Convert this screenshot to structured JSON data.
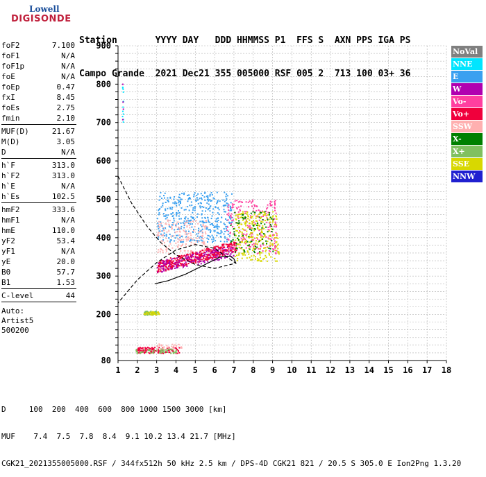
{
  "logo": {
    "line1": "Lowell",
    "line2": "DIGISONDE"
  },
  "header": {
    "line1": "Station       YYYY DAY   DDD HHMMSS P1  FFS S  AXN PPS IGA PS",
    "line2": "Campo Grande  2021 Dec21 355 005000 RSF 005 2  713 100 03+ 36"
  },
  "params_group1": [
    {
      "name": "foF2",
      "value": "7.100"
    },
    {
      "name": "foF1",
      "value": "N/A"
    },
    {
      "name": "foF1p",
      "value": "N/A"
    },
    {
      "name": "foE",
      "value": "N/A"
    },
    {
      "name": "foEp",
      "value": "0.47"
    },
    {
      "name": "fxI",
      "value": "8.45"
    },
    {
      "name": "foEs",
      "value": "2.75"
    },
    {
      "name": "fmin",
      "value": "2.10"
    }
  ],
  "params_group2": [
    {
      "name": "MUF(D)",
      "value": "21.67"
    },
    {
      "name": "M(D)",
      "value": "3.05"
    },
    {
      "name": "D",
      "value": "N/A"
    }
  ],
  "params_group3": [
    {
      "name": "h`F",
      "value": "313.0"
    },
    {
      "name": "h`F2",
      "value": "313.0"
    },
    {
      "name": "h`E",
      "value": "N/A"
    },
    {
      "name": "h`Es",
      "value": "102.5"
    }
  ],
  "params_group4": [
    {
      "name": "hmF2",
      "value": "333.6"
    },
    {
      "name": "hmF1",
      "value": "N/A"
    },
    {
      "name": "hmE",
      "value": "110.0"
    },
    {
      "name": "yF2",
      "value": "53.4"
    },
    {
      "name": "yF1",
      "value": "N/A"
    },
    {
      "name": "yE",
      "value": "20.0"
    },
    {
      "name": "B0",
      "value": "57.7"
    },
    {
      "name": "B1",
      "value": "1.53"
    }
  ],
  "params_group5": [
    {
      "name": "C-level",
      "value": "44"
    }
  ],
  "auto": {
    "line1": "Auto:",
    "line2": "Artist5",
    "line3": "500200"
  },
  "legend": [
    {
      "label": "NoVal",
      "color": "#808080"
    },
    {
      "label": "NNE",
      "color": "#00e5ff"
    },
    {
      "label": "E",
      "color": "#3aa0f0"
    },
    {
      "label": "W",
      "color": "#b000b0"
    },
    {
      "label": "Vo-",
      "color": "#ff3fa0"
    },
    {
      "label": "Vo+",
      "color": "#f0003c"
    },
    {
      "label": "SSW",
      "color": "#ffb0b0"
    },
    {
      "label": "X-",
      "color": "#008000"
    },
    {
      "label": "X+",
      "color": "#80c060"
    },
    {
      "label": "SSE",
      "color": "#d8d800"
    },
    {
      "label": "NNW",
      "color": "#2020d0"
    }
  ],
  "footer": {
    "line1": "D     100  200  400  600  800 1000 1500 3000 [km]",
    "line2": "MUF    7.4  7.5  7.8  8.4  9.1 10.2 13.4 21.7 [MHz]",
    "line3": "CGK21_2021355005000.RSF / 344fx512h 50 kHz 2.5 km / DPS-4D CGK21 821 / 20.5 S 305.0 E Ion2Png 1.3.20"
  },
  "chart_data": {
    "type": "scatter",
    "xlim": [
      1,
      18
    ],
    "ylim": [
      80,
      900
    ],
    "x_ticks": [
      "1",
      "2",
      "3",
      "4",
      "5",
      "6",
      "7",
      "8",
      "9",
      "10",
      "11",
      "12",
      "13",
      "14",
      "15",
      "16",
      "17",
      "18"
    ],
    "y_ticks": [
      "80",
      "200",
      "300",
      "400",
      "500",
      "600",
      "700",
      "800",
      "900"
    ],
    "grid": true,
    "clusters": [
      {
        "series": "E",
        "x": [
          3.0,
          6.9
        ],
        "y": [
          390,
          520
        ],
        "n": 420
      },
      {
        "series": "SSW",
        "x": [
          3.0,
          5.6
        ],
        "y": [
          360,
          450
        ],
        "n": 160
      },
      {
        "series": "Vo+",
        "x": [
          3.0,
          7.1
        ],
        "y": [
          310,
          400
        ],
        "n": 420
      },
      {
        "series": "W",
        "x": [
          3.0,
          7.0
        ],
        "y": [
          310,
          380
        ],
        "n": 160
      },
      {
        "series": "Vo-",
        "x": [
          6.6,
          9.2
        ],
        "y": [
          360,
          500
        ],
        "n": 220
      },
      {
        "series": "SSE",
        "x": [
          7.0,
          9.3
        ],
        "y": [
          340,
          470
        ],
        "n": 260
      },
      {
        "series": "X-",
        "x": [
          6.8,
          9.0
        ],
        "y": [
          360,
          470
        ],
        "n": 90
      },
      {
        "series": "X+",
        "x": [
          2.3,
          3.0
        ],
        "y": [
          200,
          210
        ],
        "n": 60
      },
      {
        "series": "SSE",
        "x": [
          2.3,
          3.1
        ],
        "y": [
          200,
          210
        ],
        "n": 30
      },
      {
        "series": "Vo+",
        "x": [
          1.9,
          4.2
        ],
        "y": [
          100,
          116
        ],
        "n": 120
      },
      {
        "series": "X+",
        "x": [
          1.9,
          4.0
        ],
        "y": [
          100,
          112
        ],
        "n": 60
      },
      {
        "series": "SSW",
        "x": [
          3.0,
          4.3
        ],
        "y": [
          110,
          125
        ],
        "n": 30
      },
      {
        "series": "NNE",
        "x": [
          1.2,
          1.25
        ],
        "y": [
          700,
          800
        ],
        "n": 12
      },
      {
        "series": "W",
        "x": [
          1.2,
          1.25
        ],
        "y": [
          705,
          805
        ],
        "n": 4
      }
    ],
    "profile_solid": [
      [
        7.1,
        333.6
      ],
      [
        7.0,
        345
      ],
      [
        6.8,
        352
      ],
      [
        6.3,
        350
      ],
      [
        5.5,
        330
      ],
      [
        4.5,
        305
      ],
      [
        3.6,
        288
      ],
      [
        2.9,
        280
      ]
    ],
    "profile_dashed": [
      [
        1.0,
        560
      ],
      [
        1.7,
        490
      ],
      [
        2.5,
        430
      ],
      [
        3.2,
        388
      ],
      [
        4.0,
        355
      ],
      [
        5.0,
        330
      ],
      [
        6.0,
        320
      ],
      [
        7.1,
        333.6
      ],
      [
        6.0,
        372
      ],
      [
        5.0,
        382
      ],
      [
        4.0,
        368
      ],
      [
        3.0,
        335
      ],
      [
        2.0,
        290
      ],
      [
        1.0,
        230
      ]
    ]
  }
}
